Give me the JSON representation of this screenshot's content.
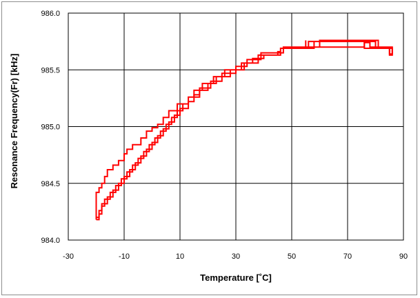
{
  "chart_data": {
    "type": "line",
    "xlabel": "Temperature  [˚C]",
    "ylabel": "Resonance Frequency(Fr)  [kHz]",
    "xlim": [
      -30,
      90
    ],
    "ylim": [
      984.0,
      986.0
    ],
    "x_ticks": [
      "-30",
      "-10",
      "10",
      "30",
      "50",
      "70",
      "90"
    ],
    "y_ticks": [
      "984.0",
      "984.5",
      "985.0",
      "985.5",
      "986.0"
    ],
    "grid": true,
    "legend": "none",
    "series_color": "#ff0000",
    "series": [
      {
        "points": [
          [
            -20,
            984.18
          ],
          [
            -19,
            984.18
          ],
          [
            -19,
            984.23
          ],
          [
            -18,
            984.23
          ],
          [
            -18,
            984.3
          ],
          [
            -17,
            984.3
          ],
          [
            -17,
            984.36
          ],
          [
            -15,
            984.36
          ],
          [
            -15,
            984.42
          ],
          [
            -13,
            984.42
          ],
          [
            -13,
            984.48
          ],
          [
            -11,
            984.48
          ],
          [
            -11,
            984.54
          ],
          [
            -9,
            984.54
          ],
          [
            -9,
            984.6
          ],
          [
            -7,
            984.6
          ],
          [
            -7,
            984.66
          ],
          [
            -5,
            984.66
          ],
          [
            -5,
            984.72
          ],
          [
            -3,
            984.72
          ],
          [
            -3,
            984.78
          ],
          [
            -1,
            984.78
          ],
          [
            -1,
            984.84
          ],
          [
            1,
            984.84
          ],
          [
            1,
            984.9
          ],
          [
            3,
            984.9
          ],
          [
            3,
            984.96
          ],
          [
            5,
            984.96
          ],
          [
            5,
            985.02
          ],
          [
            7,
            985.02
          ],
          [
            7,
            985.08
          ],
          [
            9,
            985.08
          ],
          [
            9,
            985.14
          ],
          [
            11,
            985.14
          ],
          [
            11,
            985.2
          ],
          [
            13,
            985.2
          ],
          [
            13,
            985.26
          ],
          [
            15,
            985.26
          ],
          [
            15,
            985.32
          ],
          [
            18,
            985.32
          ],
          [
            18,
            985.38
          ],
          [
            22,
            985.38
          ],
          [
            22,
            985.44
          ],
          [
            28,
            985.44
          ],
          [
            28,
            985.5
          ],
          [
            32,
            985.5
          ],
          [
            32,
            985.56
          ],
          [
            38,
            985.56
          ],
          [
            38,
            985.63
          ],
          [
            46,
            985.63
          ],
          [
            46,
            985.69
          ],
          [
            58,
            985.69
          ],
          [
            58,
            985.75
          ],
          [
            80,
            985.75
          ],
          [
            80,
            985.69
          ],
          [
            85,
            985.69
          ],
          [
            85,
            985.63
          ],
          [
            86,
            985.63
          ],
          [
            86,
            985.69
          ],
          [
            85,
            985.69
          ],
          [
            84,
            985.69
          ],
          [
            76,
            985.69
          ],
          [
            76,
            985.75
          ],
          [
            56,
            985.75
          ],
          [
            56,
            985.69
          ],
          [
            46,
            985.69
          ],
          [
            46,
            985.66
          ],
          [
            45,
            985.66
          ],
          [
            45,
            985.63
          ],
          [
            40,
            985.63
          ],
          [
            40,
            985.6
          ],
          [
            36,
            985.6
          ],
          [
            36,
            985.56
          ],
          [
            33,
            985.56
          ],
          [
            33,
            985.5
          ],
          [
            26,
            985.5
          ],
          [
            26,
            985.44
          ],
          [
            23,
            985.44
          ],
          [
            23,
            985.38
          ],
          [
            20,
            985.38
          ],
          [
            20,
            985.32
          ],
          [
            17,
            985.32
          ],
          [
            17,
            985.26
          ],
          [
            13,
            985.26
          ],
          [
            13,
            985.2
          ],
          [
            9,
            985.2
          ],
          [
            9,
            985.14
          ],
          [
            6,
            985.14
          ],
          [
            6,
            985.08
          ],
          [
            4,
            985.08
          ],
          [
            4,
            985.02
          ],
          [
            2,
            985.02
          ],
          [
            2,
            984.99
          ],
          [
            0,
            984.99
          ],
          [
            0,
            984.96
          ],
          [
            -2,
            984.96
          ],
          [
            -2,
            984.9
          ],
          [
            -4,
            984.9
          ],
          [
            -4,
            984.84
          ],
          [
            -7,
            984.84
          ],
          [
            -7,
            984.8
          ],
          [
            -9,
            984.8
          ],
          [
            -9,
            984.76
          ],
          [
            -10,
            984.76
          ],
          [
            -10,
            984.7
          ],
          [
            -12,
            984.7
          ],
          [
            -12,
            984.66
          ],
          [
            -14,
            984.66
          ],
          [
            -14,
            984.62
          ],
          [
            -16,
            984.62
          ],
          [
            -16,
            984.56
          ],
          [
            -17,
            984.56
          ],
          [
            -17,
            984.5
          ],
          [
            -18,
            984.5
          ],
          [
            -18,
            984.46
          ],
          [
            -19,
            984.46
          ],
          [
            -19,
            984.42
          ],
          [
            -20,
            984.42
          ],
          [
            -20,
            984.36
          ],
          [
            -20,
            984.18
          ]
        ]
      },
      {
        "points": [
          [
            -20,
            984.2
          ],
          [
            -19,
            984.2
          ],
          [
            -19,
            984.26
          ],
          [
            -18,
            984.26
          ],
          [
            -18,
            984.32
          ],
          [
            -16,
            984.32
          ],
          [
            -16,
            984.38
          ],
          [
            -14,
            984.38
          ],
          [
            -14,
            984.44
          ],
          [
            -12,
            984.44
          ],
          [
            -12,
            984.5
          ],
          [
            -10,
            984.5
          ],
          [
            -10,
            984.56
          ],
          [
            -8,
            984.56
          ],
          [
            -8,
            984.62
          ],
          [
            -6,
            984.62
          ],
          [
            -6,
            984.68
          ],
          [
            -4,
            984.68
          ],
          [
            -4,
            984.74
          ],
          [
            -2,
            984.74
          ],
          [
            -2,
            984.8
          ],
          [
            0,
            984.8
          ],
          [
            0,
            984.86
          ],
          [
            2,
            984.86
          ],
          [
            2,
            984.92
          ],
          [
            4,
            984.92
          ],
          [
            4,
            984.98
          ],
          [
            6,
            984.98
          ],
          [
            6,
            985.04
          ],
          [
            8,
            985.04
          ],
          [
            8,
            985.1
          ],
          [
            10,
            985.1
          ],
          [
            10,
            985.16
          ],
          [
            13,
            985.16
          ],
          [
            13,
            985.22
          ],
          [
            15,
            985.22
          ],
          [
            15,
            985.28
          ],
          [
            17,
            985.28
          ],
          [
            17,
            985.34
          ],
          [
            21,
            985.34
          ],
          [
            21,
            985.4
          ],
          [
            25,
            985.4
          ],
          [
            25,
            985.47
          ],
          [
            30,
            985.47
          ],
          [
            30,
            985.53
          ],
          [
            34,
            985.53
          ],
          [
            34,
            985.59
          ],
          [
            39,
            985.59
          ],
          [
            39,
            985.65
          ],
          [
            47,
            985.65
          ],
          [
            47,
            985.7
          ],
          [
            60,
            985.7
          ],
          [
            60,
            985.76
          ],
          [
            81,
            985.76
          ],
          [
            81,
            985.7
          ],
          [
            86,
            985.7
          ],
          [
            86,
            985.64
          ],
          [
            85,
            985.64
          ],
          [
            85,
            985.7
          ],
          [
            78,
            985.7
          ],
          [
            78,
            985.74
          ],
          [
            76,
            985.74
          ],
          [
            76,
            985.7
          ],
          [
            55,
            985.7
          ],
          [
            55,
            985.76
          ]
        ]
      }
    ]
  }
}
